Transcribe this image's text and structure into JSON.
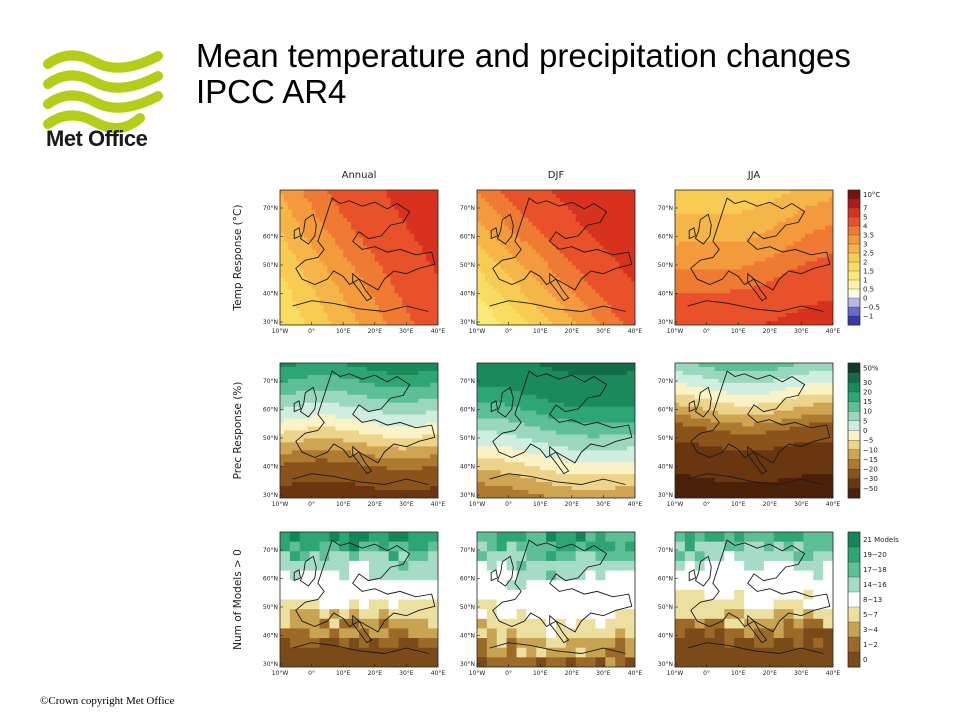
{
  "title": {
    "line1": "Mean temperature and precipitation changes",
    "line2": "IPCC AR4"
  },
  "logo": {
    "text": "Met Office",
    "icon": "met-office-wave-logo",
    "color": "#b5cc18"
  },
  "footer": {
    "copyright": "©Crown copyright   Met Office"
  },
  "columns": [
    "Annual",
    "DJF",
    "JJA"
  ],
  "rows": [
    {
      "label": "Temp Response (°C)",
      "legend": [
        "10°C",
        "7",
        "5",
        "4",
        "3.5",
        "3",
        "2.5",
        "2",
        "1.5",
        "1",
        "0.5",
        "0",
        "−0.5",
        "−1"
      ],
      "colors": [
        "#7a1010",
        "#b01c1c",
        "#d8321e",
        "#e8512a",
        "#ee7a33",
        "#f29a3c",
        "#f6b548",
        "#f8cb52",
        "#fadc60",
        "#fbe97a",
        "#fcf4a8",
        "#fdfbe0",
        "#b8b8e6",
        "#6a6acc",
        "#3a3aa6"
      ]
    },
    {
      "label": "Prec Response (%)",
      "legend": [
        "50%",
        "30",
        "20",
        "15",
        "10",
        "5",
        "0",
        "−5",
        "−10",
        "−15",
        "−20",
        "−30",
        "−50"
      ],
      "colors": [
        "#0d3b28",
        "#136c48",
        "#1a8a5a",
        "#2ea674",
        "#5dbf95",
        "#9ad7bd",
        "#cfeedf",
        "#fbf2c6",
        "#ecd48a",
        "#cfa553",
        "#ad7a30",
        "#8a531b",
        "#6a3610",
        "#4a2008"
      ]
    },
    {
      "label": "Num of Models > 0",
      "legend": [
        "21 Models",
        "19−20",
        "17−18",
        "14−16",
        "8−13",
        "5−7",
        "3−4",
        "1−2",
        "0"
      ],
      "colors": [
        "#14875a",
        "#2ea674",
        "#5dbf95",
        "#a6dcc5",
        "#ffffff",
        "#ece0a0",
        "#c8a452",
        "#9c6a28",
        "#7a4a18"
      ]
    }
  ],
  "axes": {
    "lat_ticks": [
      "70°N",
      "60°N",
      "50°N",
      "40°N",
      "30°N"
    ],
    "lon_ticks": [
      "10°W",
      "0°",
      "10°E",
      "20°E",
      "30°E",
      "40°E"
    ],
    "lat_range": [
      30,
      75
    ],
    "lon_range": [
      -10,
      40
    ]
  },
  "map_data": {
    "type": "choropleth-panels",
    "region": "Europe",
    "panels": [
      {
        "row": "Temp Response (°C)",
        "column": "Annual"
      },
      {
        "row": "Temp Response (°C)",
        "column": "DJF"
      },
      {
        "row": "Temp Response (°C)",
        "column": "JJA"
      },
      {
        "row": "Prec Response (%)",
        "column": "Annual"
      },
      {
        "row": "Prec Response (%)",
        "column": "DJF"
      },
      {
        "row": "Prec Response (%)",
        "column": "JJA"
      },
      {
        "row": "Num of Models > 0",
        "column": "Annual"
      },
      {
        "row": "Num of Models > 0",
        "column": "DJF"
      },
      {
        "row": "Num of Models > 0",
        "column": "JJA"
      }
    ]
  }
}
